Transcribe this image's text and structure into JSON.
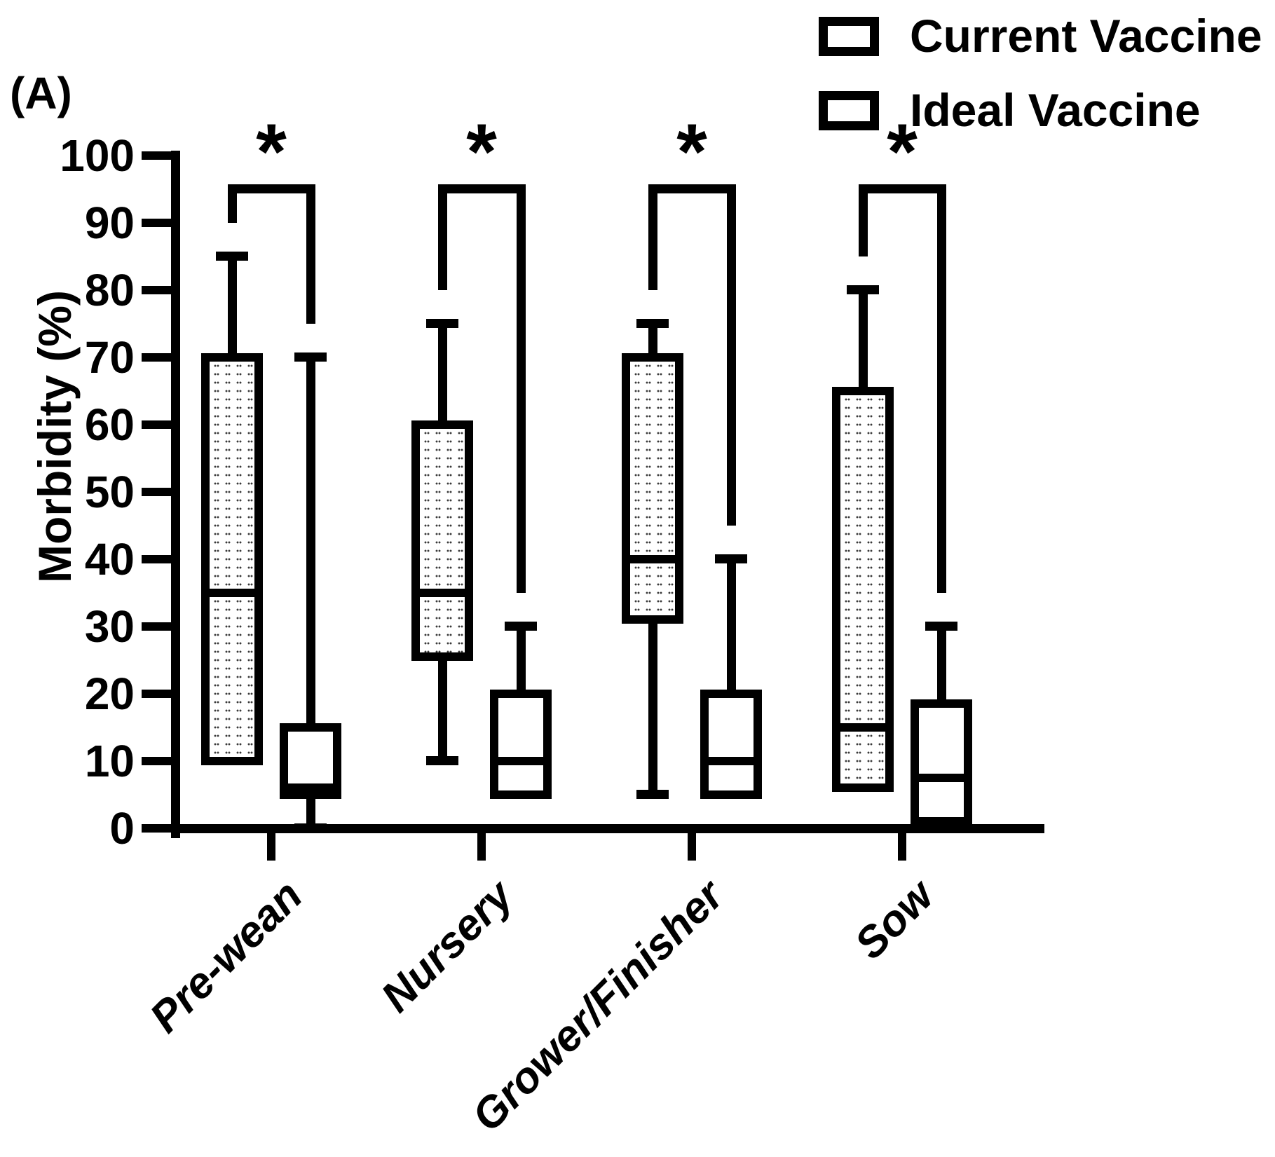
{
  "panel_label": "(A)",
  "chart_data": {
    "type": "boxplot",
    "title": "(A)",
    "ylabel": "Morbidity (%)",
    "xlabel": "",
    "ylim": [
      0,
      100
    ],
    "yticks": [
      0,
      10,
      20,
      30,
      40,
      50,
      60,
      70,
      80,
      90,
      100
    ],
    "grid": false,
    "legend_position": "top-right",
    "categories": [
      "Pre-wean",
      "Nursery",
      "Grower/Finisher",
      "Sow"
    ],
    "series": [
      {
        "name": "Current Vaccine",
        "fill": "dotted",
        "boxes": [
          {
            "category": "Pre-wean",
            "whisker_high": 85,
            "q3": 70,
            "median": 35,
            "q1": 10,
            "whisker_low": null
          },
          {
            "category": "Nursery",
            "whisker_high": 75,
            "q3": 60,
            "median": 35,
            "q1": 25.5,
            "whisker_low": 10
          },
          {
            "category": "Grower/Finisher",
            "whisker_high": 75,
            "q3": 70,
            "median": 40,
            "q1": 31,
            "whisker_low": 5
          },
          {
            "category": "Sow",
            "whisker_high": 80,
            "q3": 65,
            "median": 15,
            "q1": 6,
            "whisker_low": null
          }
        ]
      },
      {
        "name": "Ideal Vaccine",
        "fill": "white",
        "boxes": [
          {
            "category": "Pre-wean",
            "whisker_high": 70,
            "q3": 15,
            "median": 6,
            "q1": 5,
            "whisker_low": 0
          },
          {
            "category": "Nursery",
            "whisker_high": 30,
            "q3": 20,
            "median": 10,
            "q1": 5,
            "whisker_low": null
          },
          {
            "category": "Grower/Finisher",
            "whisker_high": 40,
            "q3": 20,
            "median": 10,
            "q1": 5,
            "whisker_low": null
          },
          {
            "category": "Sow",
            "whisker_high": 30,
            "q3": 18.5,
            "median": 7.5,
            "q1": 1,
            "whisker_low": null
          }
        ]
      }
    ],
    "significance": [
      {
        "category": "Pre-wean",
        "label": "*",
        "bar_y": 95,
        "left_arm_end": 90,
        "right_arm_end": 75
      },
      {
        "category": "Nursery",
        "label": "*",
        "bar_y": 95,
        "left_arm_end": 80,
        "right_arm_end": 35
      },
      {
        "category": "Grower/Finisher",
        "label": "*",
        "bar_y": 95,
        "left_arm_end": 80,
        "right_arm_end": 45
      },
      {
        "category": "Sow",
        "label": "*",
        "bar_y": 95,
        "left_arm_end": 85,
        "right_arm_end": 35
      }
    ],
    "legend": [
      {
        "label": "Current Vaccine",
        "fill": "dotted"
      },
      {
        "label": "Ideal Vaccine",
        "fill": "white"
      }
    ]
  }
}
